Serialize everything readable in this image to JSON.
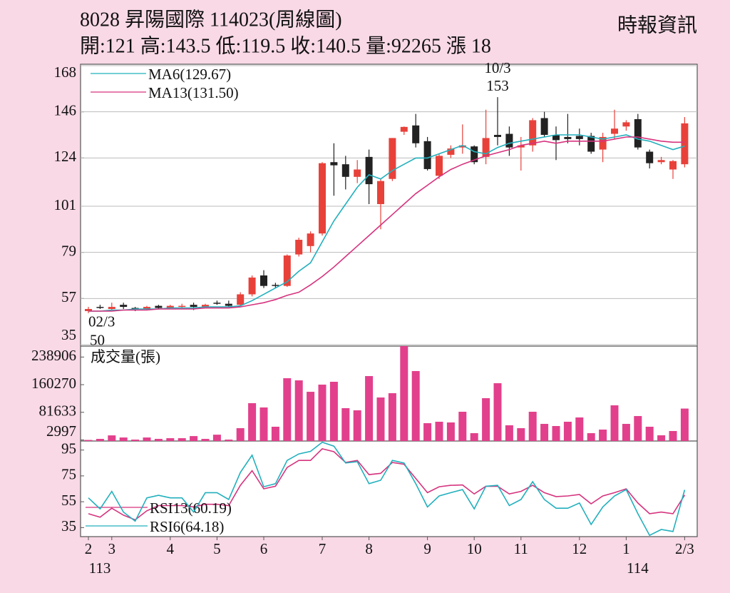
{
  "header": {
    "title": "8028  昇陽國際 114023(周線圖)",
    "source": "時報資訊",
    "quote": "開:121 高:143.5 低:119.5 收:140.5 量:92265 漲 18"
  },
  "chart_data": {
    "type": "candlestick",
    "categories": [
      "2",
      null,
      "3",
      null,
      null,
      null,
      null,
      "4",
      null,
      null,
      null,
      "5",
      null,
      null,
      null,
      "6",
      null,
      null,
      null,
      null,
      "7",
      null,
      null,
      null,
      "8",
      null,
      null,
      null,
      null,
      "9",
      null,
      null,
      null,
      "10",
      null,
      null,
      null,
      "11",
      null,
      null,
      null,
      null,
      "12",
      null,
      null,
      null,
      "1",
      null,
      null,
      null,
      null,
      "2/3"
    ],
    "category_years": [
      "113",
      null,
      null,
      null,
      null,
      null,
      null,
      null,
      null,
      null,
      null,
      null,
      null,
      null,
      null,
      null,
      null,
      null,
      null,
      null,
      null,
      null,
      null,
      null,
      null,
      null,
      null,
      null,
      null,
      null,
      null,
      null,
      null,
      null,
      null,
      null,
      null,
      null,
      null,
      null,
      null,
      null,
      null,
      null,
      null,
      null,
      "114",
      null,
      null,
      null,
      null,
      null
    ],
    "open": [
      51,
      53,
      52,
      54,
      52.5,
      52,
      53.5,
      52.5,
      53,
      54,
      53,
      55,
      54.5,
      54,
      59,
      68,
      63.5,
      63,
      78,
      82,
      88,
      122,
      121,
      115,
      124.5,
      102,
      114,
      136.5,
      139.5,
      132,
      115.5,
      125.5,
      129,
      129.5,
      124.5,
      135,
      135.5,
      129,
      130,
      143,
      135,
      134,
      134.5,
      134.5,
      128,
      135.5,
      139,
      142.5,
      127,
      122,
      118.5,
      121
    ],
    "high": [
      53,
      54,
      55,
      55,
      53,
      53.5,
      54,
      54,
      54.5,
      55,
      54.5,
      56,
      56,
      60,
      68,
      70.5,
      64.5,
      78,
      86,
      89,
      122,
      131,
      125,
      123,
      128,
      114,
      133.5,
      139,
      145,
      134,
      126,
      130,
      140,
      130,
      147,
      153,
      139,
      134,
      143,
      146,
      139,
      145,
      138,
      136,
      136,
      147,
      142,
      145,
      128,
      124.5,
      123,
      143.5
    ],
    "low": [
      50,
      52,
      51.5,
      52,
      51,
      51.5,
      52,
      52,
      52.5,
      51.5,
      52.5,
      54,
      53,
      53.5,
      58,
      62,
      62,
      62.5,
      77,
      79,
      87,
      106,
      109,
      112,
      102,
      90,
      113,
      135,
      129,
      118,
      114,
      124,
      126,
      121,
      121,
      130,
      125,
      118,
      127,
      134,
      123,
      131,
      130,
      126,
      122,
      133,
      137,
      128,
      119,
      121,
      114,
      119.5
    ],
    "close": [
      52,
      52.5,
      53,
      53,
      52,
      53,
      52.5,
      53.5,
      53.5,
      53,
      54,
      54.5,
      53.5,
      59,
      67,
      63,
      63,
      77.5,
      85,
      88,
      121.5,
      120.5,
      115,
      118.5,
      111.5,
      113,
      133.5,
      138.8,
      131,
      118.7,
      125,
      128.5,
      130,
      122,
      133.5,
      134,
      129,
      130,
      142,
      135,
      132.5,
      133,
      133,
      127,
      134,
      138,
      141,
      129,
      121.5,
      123,
      122.5,
      140.5
    ],
    "up_color": "#e8413a",
    "down_color": "#222222",
    "series": [
      {
        "name": "MA6(129.67)",
        "color": "#22b0bd",
        "values": [
          51,
          51,
          51.5,
          51.5,
          52,
          52,
          52,
          52.5,
          52.5,
          52.5,
          53,
          53,
          53,
          53.5,
          56,
          59,
          62,
          65,
          70,
          74,
          84,
          94,
          102,
          110,
          116,
          114,
          118,
          121,
          124,
          124,
          126,
          128,
          130,
          127,
          126,
          129,
          131,
          132,
          133,
          134,
          135,
          135,
          135,
          134,
          133,
          134,
          135,
          133,
          132,
          130,
          128,
          129.67
        ]
      },
      {
        "name": "MA13(131.50)",
        "color": "#d6337e",
        "values": [
          51,
          51,
          51,
          51.5,
          51.5,
          51.5,
          52,
          52,
          52,
          52,
          52.5,
          52.5,
          52.5,
          53,
          54,
          55,
          56.5,
          58.5,
          60,
          63.5,
          67.5,
          72,
          77,
          82,
          87,
          92,
          97,
          102,
          107,
          111,
          115,
          118.5,
          121,
          123,
          125,
          126.5,
          128,
          130,
          131,
          132,
          131,
          132,
          132,
          132,
          132,
          133,
          134,
          134,
          133,
          132,
          131.5,
          131.5
        ]
      }
    ],
    "ylim": [
      35,
      168
    ],
    "yticks": [
      35,
      57,
      79,
      101,
      124,
      146,
      168
    ],
    "grid": true,
    "annotations": [
      {
        "date": "10/3",
        "value": 153
      },
      {
        "date": "02/3",
        "value": 50
      }
    ],
    "panels": [
      {
        "type": "bar",
        "title": "成交量(張)",
        "color": "#e2408c",
        "values": [
          3000,
          6000,
          16000,
          10000,
          4000,
          10000,
          6000,
          8000,
          8000,
          14000,
          6000,
          18000,
          4000,
          36500,
          107600,
          95400,
          40600,
          178600,
          172500,
          140000,
          160400,
          168500,
          93400,
          87300,
          184700,
          123800,
          136000,
          270000,
          199000,
          50700,
          54800,
          52800,
          83200,
          22300,
          121800,
          164400,
          44700,
          36500,
          83200,
          48700,
          42600,
          54800,
          67000,
          22300,
          32500,
          101500,
          48700,
          71000,
          40600,
          16200,
          28400,
          92265
        ],
        "ylim": [
          0,
          270000
        ],
        "yticks": [
          2997,
          81633,
          160270,
          238906
        ],
        "grid": false
      },
      {
        "type": "line",
        "series": [
          {
            "name": "RSI13(60.19)",
            "color": "#d6337e",
            "values": [
              45.7,
              43,
              50,
              44.6,
              41,
              48,
              52,
              52,
              52,
              51,
              53,
              53,
              52,
              67.7,
              79,
              65,
              67,
              81.5,
              87,
              87,
              96,
              93.7,
              85.4,
              87,
              76,
              77,
              85.4,
              84,
              73,
              62,
              66.6,
              67.7,
              68,
              61,
              67,
              67,
              61,
              63,
              67.7,
              62,
              59,
              59.5,
              60.6,
              53.4,
              59.5,
              62,
              65,
              54,
              45.7,
              47,
              45.7,
              60.19
            ]
          },
          {
            "name": "RSI6(64.18)",
            "color": "#22b0bd",
            "values": [
              58,
              49.5,
              63,
              47,
              40,
              58,
              60,
              58,
              58,
              47,
              62,
              62,
              56.7,
              77.7,
              91,
              66.6,
              69,
              87,
              92,
              94,
              101,
              98,
              85,
              86,
              69,
              71.6,
              87,
              85,
              69,
              51,
              59.5,
              62,
              64.4,
              49.5,
              67,
              67.7,
              52,
              56.7,
              70.5,
              56.7,
              50,
              50,
              54,
              37.4,
              51,
              59.5,
              64.4,
              45.7,
              29,
              33.5,
              32,
              64.18
            ]
          }
        ],
        "ylim": [
          28,
          102
        ],
        "yticks": [
          35,
          55,
          75,
          95
        ],
        "grid": false
      }
    ]
  }
}
